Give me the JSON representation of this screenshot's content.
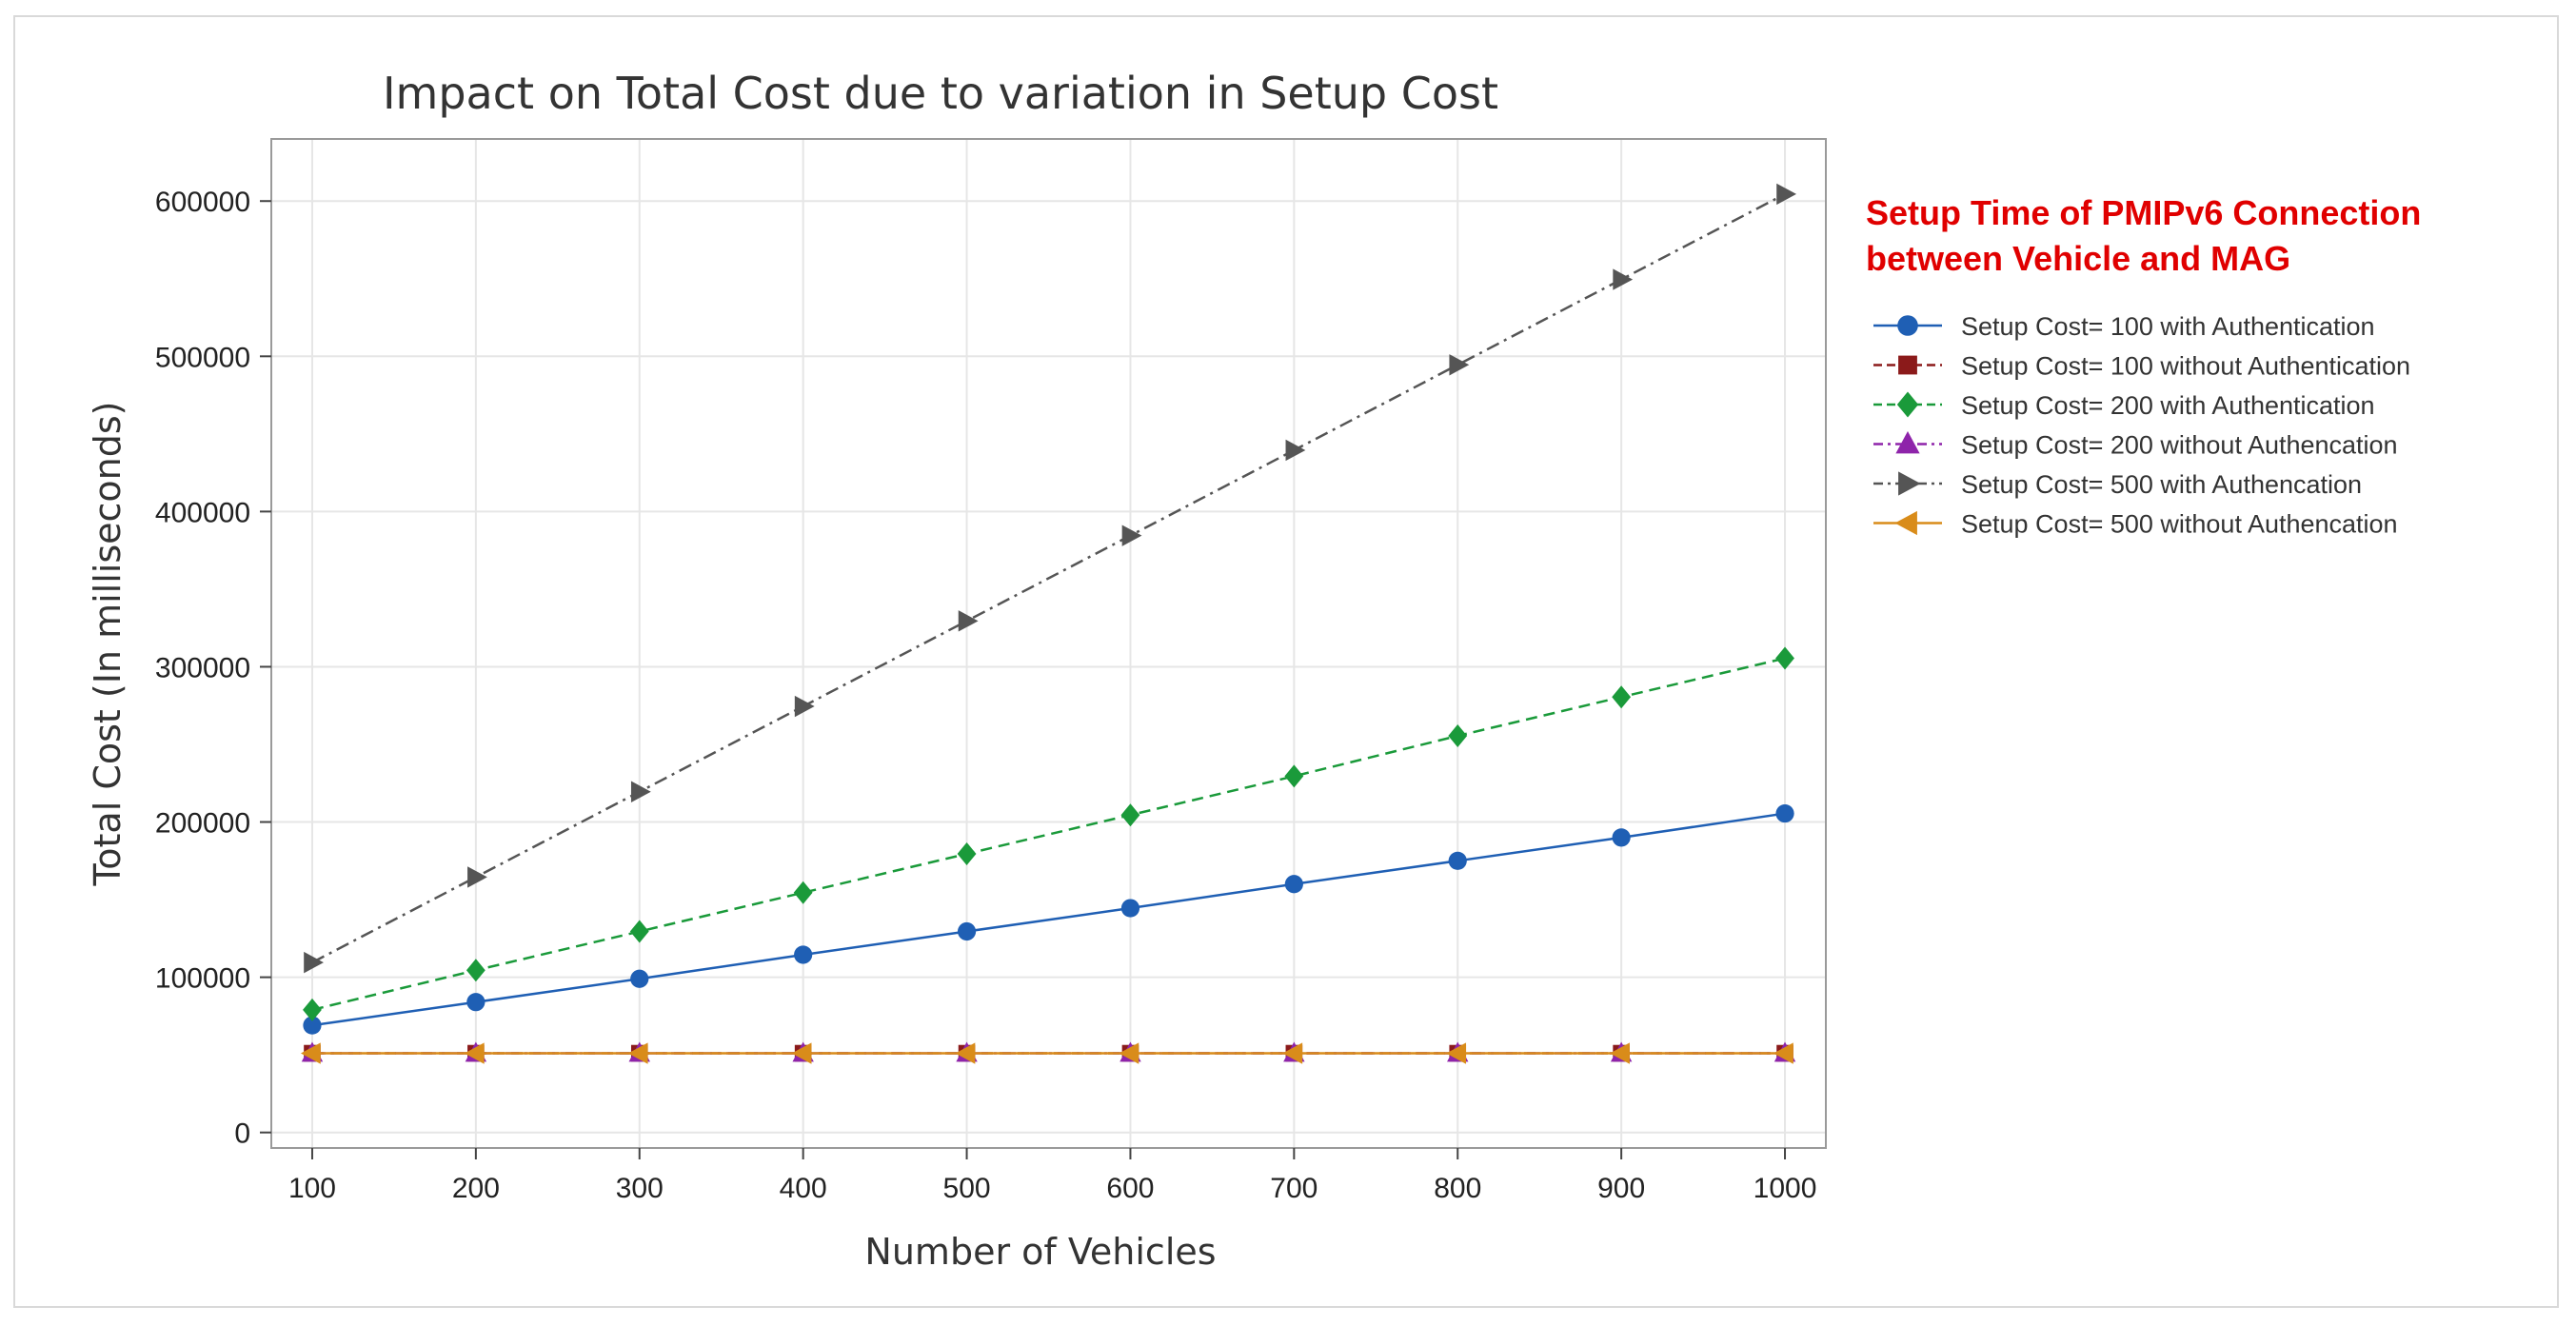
{
  "chart_data": {
    "type": "line",
    "title": "Impact on Total Cost due to variation in Setup Cost",
    "xlabel": "Number of Vehicles",
    "ylabel": "Total Cost (In milliseconds)",
    "x": [
      100,
      200,
      300,
      400,
      500,
      600,
      700,
      800,
      900,
      1000
    ],
    "xticks": [
      "100",
      "200",
      "300",
      "400",
      "500",
      "600",
      "700",
      "800",
      "900",
      "1000"
    ],
    "yticks": [
      "0",
      "100000",
      "200000",
      "300000",
      "400000",
      "500000",
      "600000"
    ],
    "ylim": [
      -10000,
      640000
    ],
    "xlim": [
      75,
      1025
    ],
    "grid": true,
    "legend_position": "right",
    "legend_title": "Setup Time of PMIPv6 Connection between Vehicle and MAG",
    "series": [
      {
        "name": "Setup Cost= 100 with Authentication",
        "color": "#1f5fb4",
        "marker": "circle",
        "dash": "solid",
        "values": [
          69000,
          84000,
          99000,
          114500,
          129500,
          144500,
          160000,
          175000,
          190000,
          205500
        ]
      },
      {
        "name": "Setup Cost= 100 without Authentication",
        "color": "#8b1a1a",
        "marker": "square",
        "dash": "dashed",
        "values": [
          51000,
          51000,
          51000,
          51000,
          51000,
          51000,
          51000,
          51000,
          51000,
          51000
        ]
      },
      {
        "name": "Setup Cost= 200 with Authentication",
        "color": "#1a9a3a",
        "marker": "diamond",
        "dash": "dashed",
        "values": [
          79000,
          104500,
          129500,
          154500,
          179500,
          204500,
          229500,
          255500,
          280500,
          305500
        ]
      },
      {
        "name": "Setup Cost= 200 without Authencation",
        "color": "#8e24aa",
        "marker": "triangle-up",
        "dash": "dashdot",
        "values": [
          51000,
          51000,
          51000,
          51000,
          51000,
          51000,
          51000,
          51000,
          51000,
          51000
        ]
      },
      {
        "name": "Setup Cost= 500 with Authencation",
        "color": "#555555",
        "marker": "triangle-right",
        "dash": "dashdot",
        "values": [
          109500,
          164500,
          219500,
          274500,
          329500,
          384500,
          439500,
          494500,
          549500,
          604500
        ]
      },
      {
        "name": "Setup Cost= 500 without Authencation",
        "color": "#d98c1a",
        "marker": "triangle-left",
        "dash": "solid",
        "values": [
          51000,
          51000,
          51000,
          51000,
          51000,
          51000,
          51000,
          51000,
          51000,
          51000
        ]
      }
    ]
  }
}
